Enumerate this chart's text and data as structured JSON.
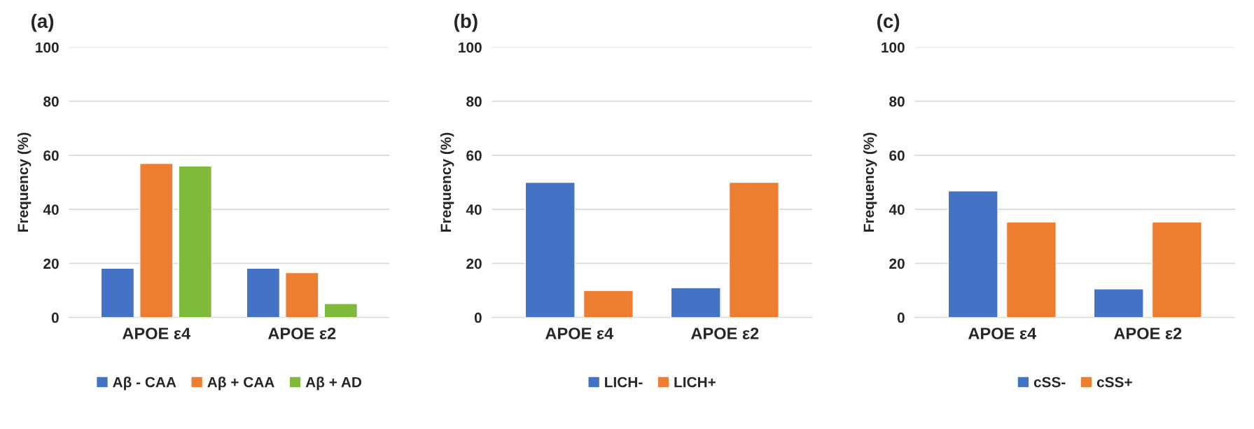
{
  "chart_data": [
    {
      "type": "bar",
      "title": "(a)",
      "ylabel": "Frequency (%)",
      "categories": [
        "APOE ε4",
        "APOE ε2"
      ],
      "ylim": [
        0,
        100
      ],
      "yticks": [
        0,
        20,
        40,
        60,
        80,
        100
      ],
      "grid": "y",
      "legend": "bottom",
      "series": [
        {
          "name": "Aβ - CAA",
          "color": "#4472c4",
          "values": [
            18.2,
            18.2
          ]
        },
        {
          "name": "Aβ + CAA",
          "color": "#ed7d31",
          "values": [
            57.0,
            16.6
          ]
        },
        {
          "name": "Aβ + AD",
          "color": "#7fba3a",
          "values": [
            56.0,
            5.1
          ]
        }
      ]
    },
    {
      "type": "bar",
      "title": "(b)",
      "ylabel": "Frequency (%)",
      "categories": [
        "APOE ε4",
        "APOE ε2"
      ],
      "ylim": [
        0,
        100
      ],
      "yticks": [
        0,
        20,
        40,
        60,
        80,
        100
      ],
      "grid": "y",
      "legend": "bottom",
      "series": [
        {
          "name": "LICH-",
          "color": "#4472c4",
          "values": [
            50,
            11
          ]
        },
        {
          "name": "LICH+",
          "color": "#ed7d31",
          "values": [
            10,
            50
          ]
        }
      ]
    },
    {
      "type": "bar",
      "title": "(c)",
      "ylabel": "Frequency (%)",
      "categories": [
        "APOE ε4",
        "APOE ε2"
      ],
      "ylim": [
        0,
        100
      ],
      "yticks": [
        0,
        20,
        40,
        60,
        80,
        100
      ],
      "grid": "y",
      "legend": "bottom",
      "series": [
        {
          "name": "cSS-",
          "color": "#4472c4",
          "values": [
            46.8,
            10.6
          ]
        },
        {
          "name": "cSS+",
          "color": "#ed7d31",
          "values": [
            35.3,
            35.3
          ]
        }
      ]
    }
  ]
}
